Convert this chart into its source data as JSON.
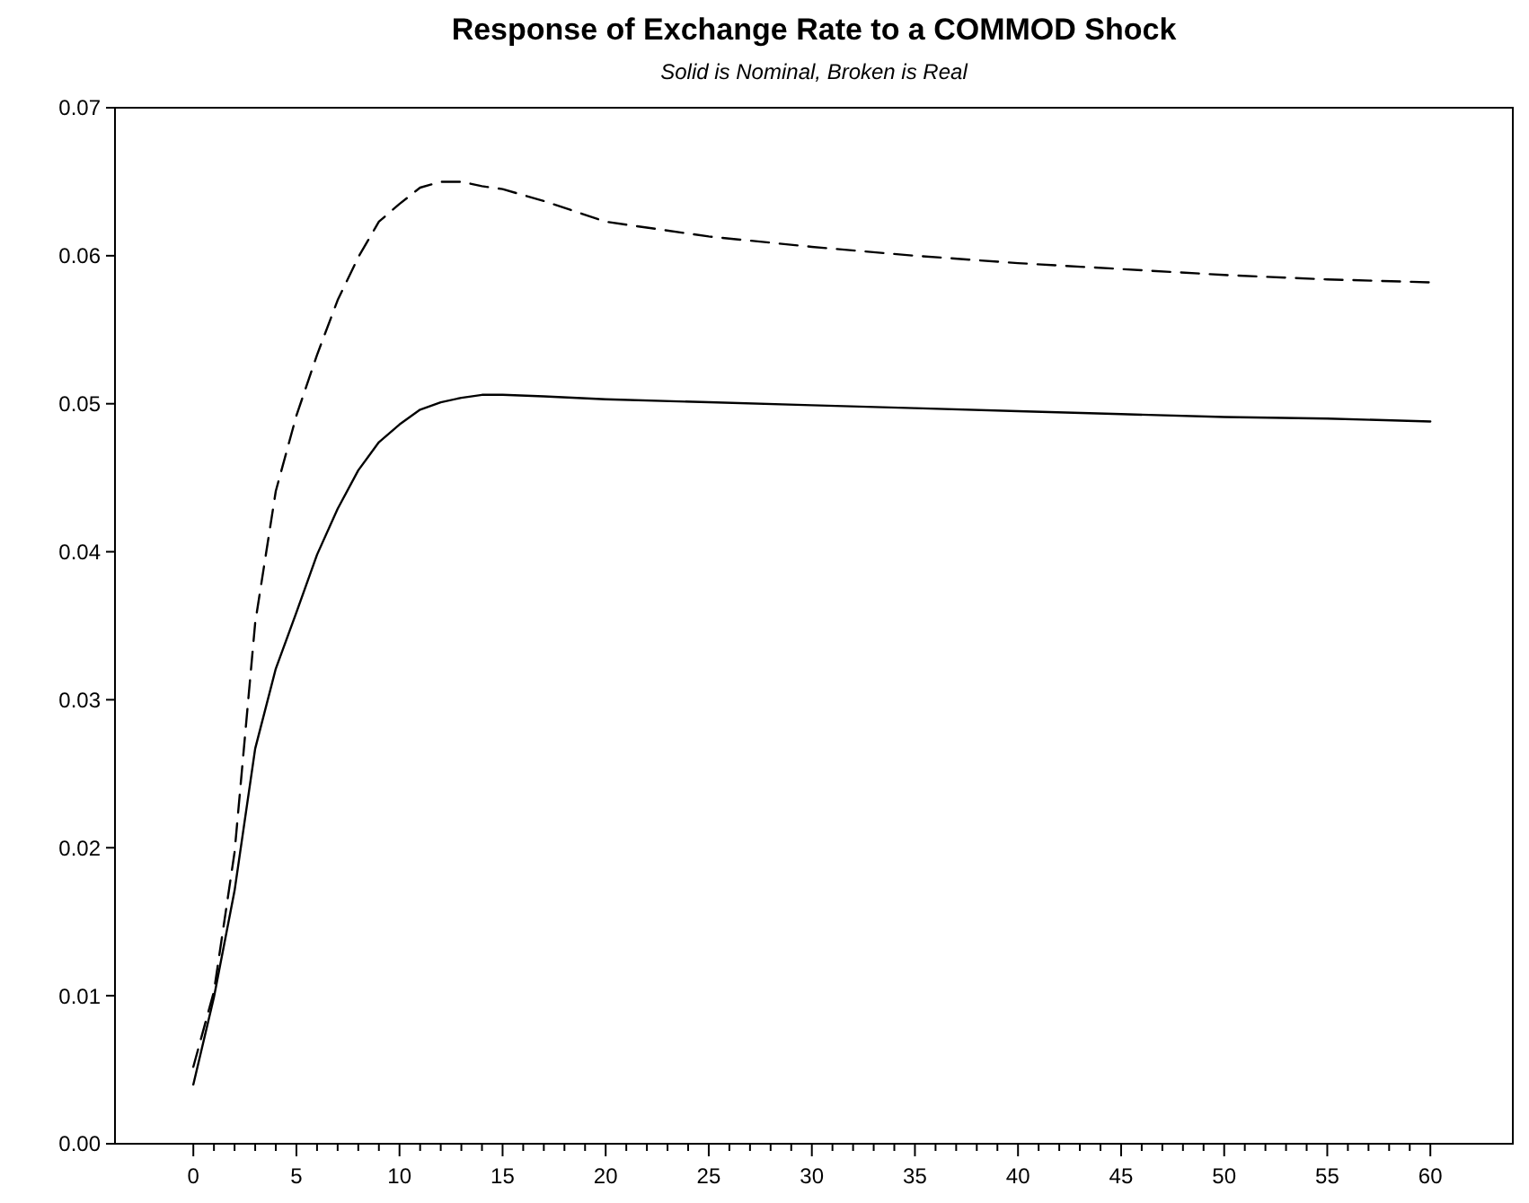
{
  "chart_data": {
    "type": "line",
    "title": "Response of Exchange Rate to a COMMOD Shock",
    "subtitle": "Solid is Nominal, Broken is Real",
    "x": [
      0,
      1,
      2,
      3,
      4,
      5,
      6,
      7,
      8,
      9,
      10,
      11,
      12,
      13,
      14,
      15,
      17,
      20,
      25,
      30,
      35,
      40,
      45,
      50,
      55,
      60
    ],
    "series": [
      {
        "color": "#000000",
        "line_style": "solid",
        "values": [
          0.004,
          0.0099,
          0.0171,
          0.0267,
          0.0321,
          0.0359,
          0.0398,
          0.0429,
          0.0455,
          0.0474,
          0.0486,
          0.0496,
          0.0501,
          0.0504,
          0.0506,
          0.0506,
          0.0505,
          0.0503,
          0.0501,
          0.0499,
          0.0497,
          0.0495,
          0.0493,
          0.0491,
          0.049,
          0.0488
        ]
      },
      {
        "color": "#000000",
        "line_style": "dashed",
        "values": [
          0.0052,
          0.0103,
          0.0197,
          0.0352,
          0.0441,
          0.0492,
          0.0533,
          0.057,
          0.0599,
          0.0623,
          0.0635,
          0.0646,
          0.065,
          0.065,
          0.0647,
          0.0645,
          0.0637,
          0.0623,
          0.0613,
          0.0606,
          0.06,
          0.0595,
          0.0591,
          0.0587,
          0.0584,
          0.0582
        ]
      }
    ],
    "xlim": [
      -3.8,
      64
    ],
    "xticks": [
      0,
      {
        "value": 1,
        "label": null
      },
      {
        "value": 2,
        "label": null
      },
      {
        "value": 3,
        "label": null
      },
      {
        "value": 4,
        "label": null
      },
      5,
      {
        "value": 6,
        "label": null
      },
      {
        "value": 7,
        "label": null
      },
      {
        "value": 8,
        "label": null
      },
      {
        "value": 9,
        "label": null
      },
      10,
      {
        "value": 11,
        "label": null
      },
      {
        "value": 12,
        "label": null
      },
      {
        "value": 13,
        "label": null
      },
      {
        "value": 14,
        "label": null
      },
      15,
      {
        "value": 16,
        "label": null
      },
      {
        "value": 17,
        "label": null
      },
      {
        "value": 18,
        "label": null
      },
      {
        "value": 19,
        "label": null
      },
      20,
      {
        "value": 21,
        "label": null
      },
      {
        "value": 22,
        "label": null
      },
      {
        "value": 23,
        "label": null
      },
      {
        "value": 24,
        "label": null
      },
      25,
      {
        "value": 26,
        "label": null
      },
      {
        "value": 27,
        "label": null
      },
      {
        "value": 28,
        "label": null
      },
      {
        "value": 29,
        "label": null
      },
      30,
      {
        "value": 31,
        "label": null
      },
      {
        "value": 32,
        "label": null
      },
      {
        "value": 33,
        "label": null
      },
      {
        "value": 34,
        "label": null
      },
      35,
      {
        "value": 36,
        "label": null
      },
      {
        "value": 37,
        "label": null
      },
      {
        "value": 38,
        "label": null
      },
      {
        "value": 39,
        "label": null
      },
      40,
      {
        "value": 41,
        "label": null
      },
      {
        "value": 42,
        "label": null
      },
      {
        "value": 43,
        "label": null
      },
      {
        "value": 44,
        "label": null
      },
      45,
      {
        "value": 46,
        "label": null
      },
      {
        "value": 47,
        "label": null
      },
      {
        "value": 48,
        "label": null
      },
      {
        "value": 49,
        "label": null
      },
      50,
      {
        "value": 51,
        "label": null
      },
      {
        "value": 52,
        "label": null
      },
      {
        "value": 53,
        "label": null
      },
      {
        "value": 54,
        "label": null
      },
      55,
      {
        "value": 56,
        "label": null
      },
      {
        "value": 57,
        "label": null
      },
      {
        "value": 58,
        "label": null
      },
      {
        "value": 59,
        "label": null
      },
      60
    ],
    "ylim": [
      0,
      0.07
    ],
    "yticks": [
      {
        "value": 0,
        "label": "0.00"
      },
      {
        "value": 0.01,
        "label": "0.01"
      },
      {
        "value": 0.02,
        "label": "0.02"
      },
      {
        "value": 0.03,
        "label": "0.03"
      },
      {
        "value": 0.04,
        "label": "0.04"
      },
      {
        "value": 0.05,
        "label": "0.05"
      },
      {
        "value": 0.06,
        "label": "0.06"
      },
      {
        "value": 0.07,
        "label": "0.07"
      }
    ],
    "grid": false,
    "marker": "none"
  }
}
